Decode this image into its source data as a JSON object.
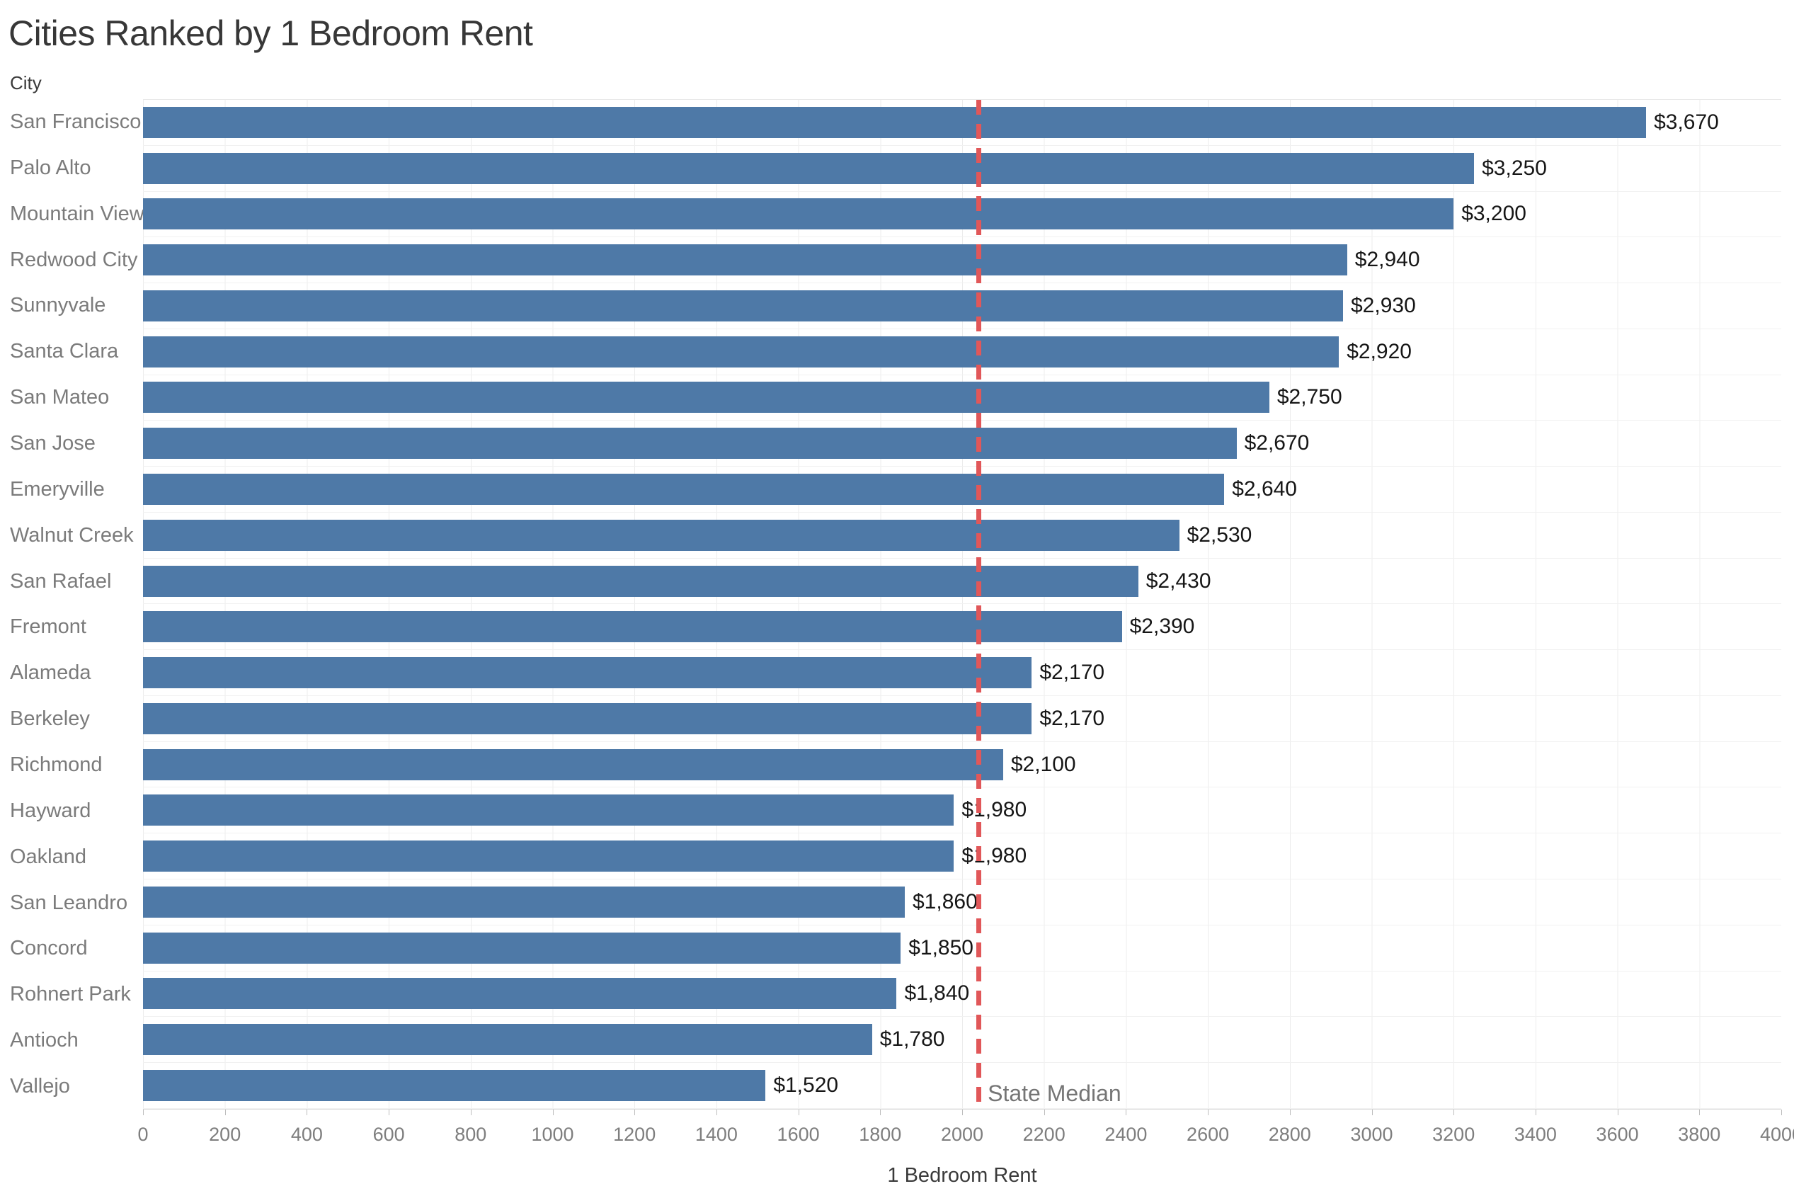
{
  "chart_data": {
    "type": "bar",
    "orientation": "horizontal",
    "title": "Cities Ranked by 1 Bedroom Rent",
    "column_header": "City",
    "xlabel": "1 Bedroom Rent",
    "xlim": [
      0,
      4000
    ],
    "x_ticks": [
      0,
      200,
      400,
      600,
      800,
      1000,
      1200,
      1400,
      1600,
      1800,
      2000,
      2200,
      2400,
      2600,
      2800,
      3000,
      3200,
      3400,
      3600,
      3800,
      4000
    ],
    "grid": "vertical-light",
    "legend": "none",
    "categories": [
      "San Francisco",
      "Palo Alto",
      "Mountain View",
      "Redwood City",
      "Sunnyvale",
      "Santa Clara",
      "San Mateo",
      "San Jose",
      "Emeryville",
      "Walnut Creek",
      "San Rafael",
      "Fremont",
      "Alameda",
      "Berkeley",
      "Richmond",
      "Hayward",
      "Oakland",
      "San Leandro",
      "Concord",
      "Rohnert Park",
      "Antioch",
      "Vallejo"
    ],
    "values": [
      3670,
      3250,
      3200,
      2940,
      2930,
      2920,
      2750,
      2670,
      2640,
      2530,
      2430,
      2390,
      2170,
      2170,
      2100,
      1980,
      1980,
      1860,
      1850,
      1840,
      1780,
      1520
    ],
    "value_labels": [
      "$3,670",
      "$3,250",
      "$3,200",
      "$2,940",
      "$2,930",
      "$2,920",
      "$2,750",
      "$2,670",
      "$2,640",
      "$2,530",
      "$2,430",
      "$2,390",
      "$2,170",
      "$2,170",
      "$2,100",
      "$1,980",
      "$1,980",
      "$1,860",
      "$1,850",
      "$1,840",
      "$1,780",
      "$1,520"
    ],
    "reference_line": {
      "label": "State Median",
      "value": 2040
    },
    "colors": {
      "bar": "#4e79a7",
      "reference_line": "#e15759",
      "value_label": "#161616",
      "category_label": "#7b7b7b",
      "tick_label": "#7e7e7e"
    }
  }
}
